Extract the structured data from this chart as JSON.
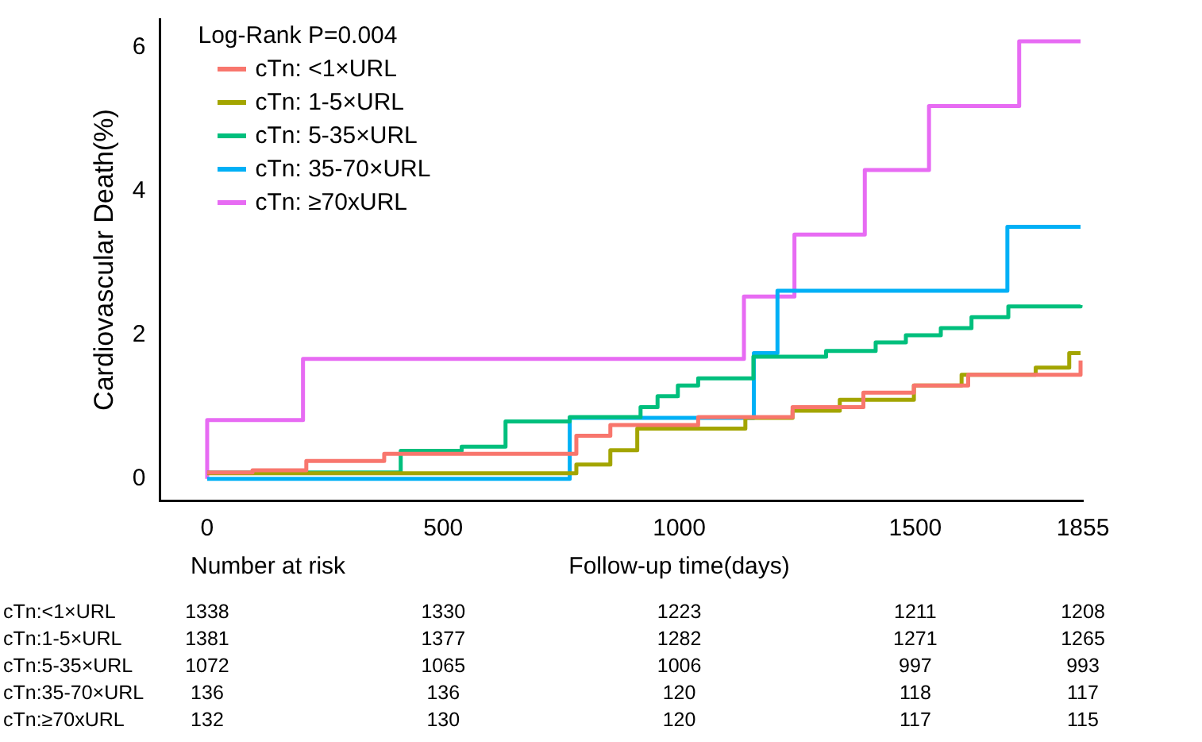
{
  "chart_data": {
    "type": "step",
    "xlabel": "Follow-up time(days)",
    "ylabel": "Cardiovascular Death(%)",
    "legend_title": "Log-Rank P=0.004",
    "legend": "top left",
    "grid": false,
    "marker": "none",
    "line_style": "solid",
    "xlim": [
      -100,
      1855
    ],
    "xticks": [
      0,
      500,
      1000,
      1500,
      1855
    ],
    "ylim": [
      -0.3,
      6.4
    ],
    "yticks": [
      0,
      2,
      4,
      6
    ],
    "series": [
      {
        "name": "cTn: <1×URL",
        "color": "#f8766d",
        "x": [
          0,
          96,
          210,
          375,
          782,
          854,
          1040,
          1240,
          1390,
          1497,
          1612,
          1850
        ],
        "values": [
          0.09,
          0.12,
          0.25,
          0.35,
          0.6,
          0.75,
          0.86,
          1.0,
          1.2,
          1.3,
          1.45,
          1.65
        ]
      },
      {
        "name": "cTn: 1-5×URL",
        "color": "#a3a500",
        "x": [
          0,
          782,
          854,
          911,
          1140,
          1240,
          1340,
          1497,
          1598,
          1755,
          1826,
          1850
        ],
        "values": [
          0.08,
          0.2,
          0.4,
          0.7,
          0.85,
          0.95,
          1.1,
          1.3,
          1.45,
          1.55,
          1.75,
          1.75
        ]
      },
      {
        "name": "cTn: 5-35×URL",
        "color": "#00bf7d",
        "x": [
          0,
          410,
          539,
          632,
          768,
          918,
          954,
          997,
          1040,
          1157,
          1311,
          1416,
          1480,
          1554,
          1619,
          1697,
          1850
        ],
        "values": [
          0.09,
          0.39,
          0.45,
          0.8,
          0.86,
          1.0,
          1.15,
          1.3,
          1.4,
          1.7,
          1.78,
          1.9,
          2.0,
          2.1,
          2.25,
          2.4,
          2.42
        ]
      },
      {
        "name": "cTn: 35-70×URL",
        "color": "#00b0f6",
        "x": [
          0,
          768,
          1158,
          1208,
          1695,
          1850
        ],
        "values": [
          0,
          0.85,
          1.75,
          2.62,
          3.51,
          3.51
        ]
      },
      {
        "name": "cTn:  ≥70xURL",
        "color": "#e76bf3",
        "x": [
          0,
          0,
          203,
          1137,
          1244,
          1393,
          1529,
          1720,
          1850
        ],
        "values": [
          0,
          0.82,
          1.67,
          2.54,
          3.4,
          4.3,
          5.19,
          6.09,
          6.09
        ]
      }
    ],
    "annotations": [
      "Number at risk",
      "cTn:<1×URL",
      "1338",
      "1330",
      "1223",
      "1211",
      "1208",
      "cTn:1-5×URL",
      "1381",
      "1377",
      "1282",
      "1271",
      "1265",
      "cTn:5-35×URL",
      "1072",
      "1065",
      "1006",
      "997",
      "993",
      "cTn:35-70×URL",
      "136",
      "136",
      "120",
      "118",
      "117",
      "cTn:≥70xURL",
      "132",
      "130",
      "120",
      "117",
      "115"
    ]
  }
}
